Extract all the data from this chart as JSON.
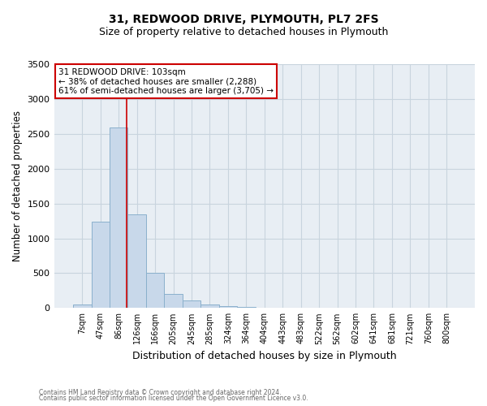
{
  "title": "31, REDWOOD DRIVE, PLYMOUTH, PL7 2FS",
  "subtitle": "Size of property relative to detached houses in Plymouth",
  "xlabel": "Distribution of detached houses by size in Plymouth",
  "ylabel": "Number of detached properties",
  "bar_labels": [
    "7sqm",
    "47sqm",
    "86sqm",
    "126sqm",
    "166sqm",
    "205sqm",
    "245sqm",
    "285sqm",
    "324sqm",
    "364sqm",
    "404sqm",
    "443sqm",
    "483sqm",
    "522sqm",
    "562sqm",
    "602sqm",
    "641sqm",
    "681sqm",
    "721sqm",
    "760sqm",
    "800sqm"
  ],
  "bar_heights": [
    50,
    1240,
    2590,
    1340,
    500,
    200,
    110,
    50,
    30,
    10,
    5,
    0,
    5,
    0,
    0,
    0,
    0,
    0,
    0,
    0,
    0
  ],
  "bar_color": "#c8d8ea",
  "bar_edgecolor": "#8ab0cc",
  "bar_linewidth": 0.7,
  "vline_color": "#cc0000",
  "ylim": [
    0,
    3500
  ],
  "yticks": [
    0,
    500,
    1000,
    1500,
    2000,
    2500,
    3000,
    3500
  ],
  "annotation_title": "31 REDWOOD DRIVE: 103sqm",
  "annotation_line1": "← 38% of detached houses are smaller (2,288)",
  "annotation_line2": "61% of semi-detached houses are larger (3,705) →",
  "annotation_box_facecolor": "#ffffff",
  "annotation_box_edgecolor": "#cc0000",
  "grid_color": "#c8d4de",
  "bg_color": "#e8eef4",
  "title_fontsize": 10,
  "subtitle_fontsize": 9,
  "footer1": "Contains HM Land Registry data © Crown copyright and database right 2024.",
  "footer2": "Contains public sector information licensed under the Open Government Licence v3.0."
}
